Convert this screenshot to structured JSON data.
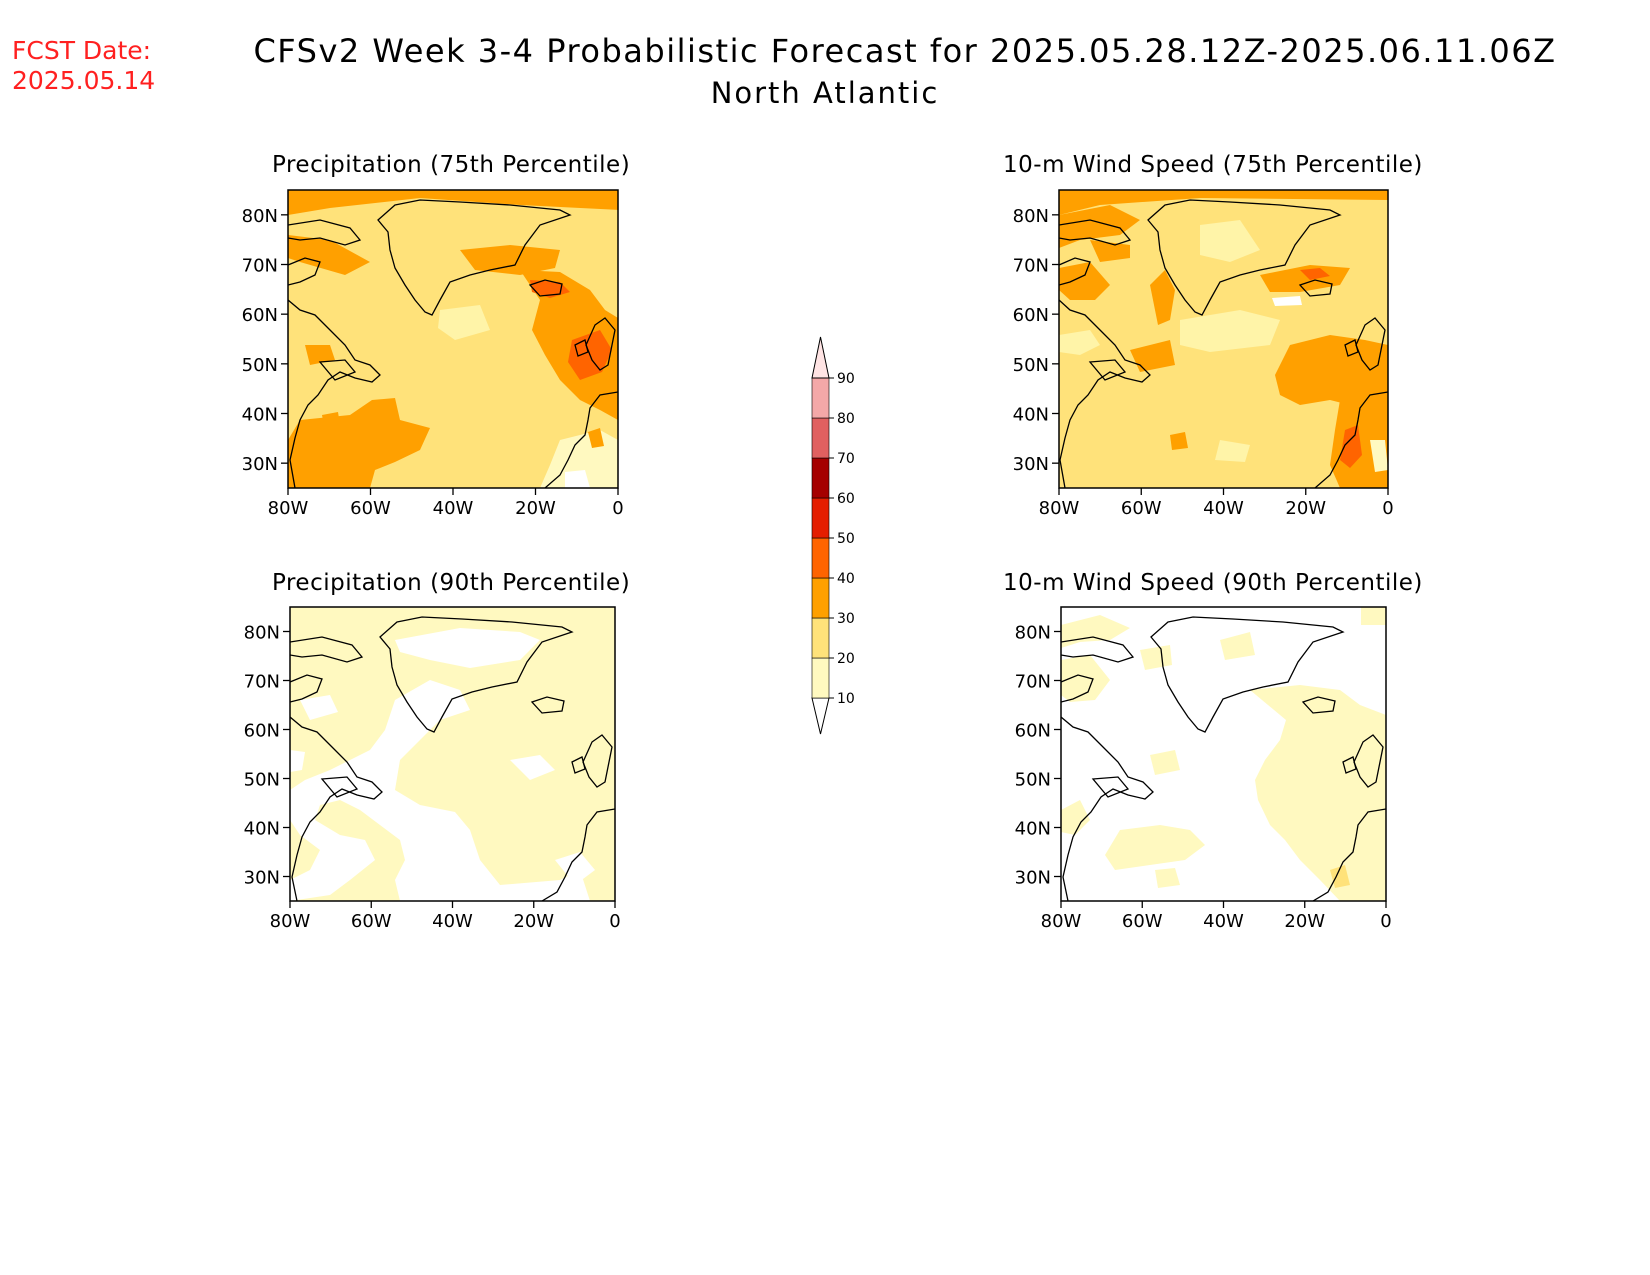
{
  "header": {
    "fcst_label": "FCST Date:",
    "fcst_date": "2025.05.14",
    "title": "CFSv2 Week 3-4 Probabilistic Forecast for 2025.05.28.12Z-2025.06.11.06Z",
    "region": "North Atlantic"
  },
  "panels": [
    {
      "title": "Precipitation (75th Percentile)"
    },
    {
      "title": "10-m Wind Speed (75th Percentile)"
    },
    {
      "title": "Precipitation (90th Percentile)"
    },
    {
      "title": "10-m Wind Speed (90th Percentile)"
    }
  ],
  "axes": {
    "lat_ticks": [
      "30N",
      "40N",
      "50N",
      "60N",
      "70N",
      "80N"
    ],
    "lon_ticks": [
      "80W",
      "60W",
      "40W",
      "20W",
      "0"
    ]
  },
  "colorbar": {
    "levels": [
      "10",
      "20",
      "30",
      "40",
      "50",
      "60",
      "70",
      "80",
      "90"
    ],
    "colors": [
      "#fff9c0",
      "#ffe27a",
      "#ffa000",
      "#ff6400",
      "#e41e00",
      "#a50000",
      "#e06060",
      "#f4a8a8",
      "#ffe4e4"
    ]
  }
}
